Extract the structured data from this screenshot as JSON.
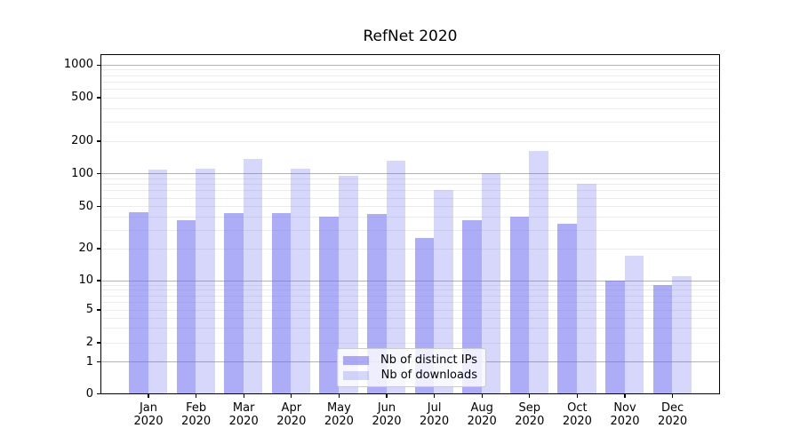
{
  "chart_data": {
    "type": "bar",
    "title": "RefNet 2020",
    "categories": [
      "Jan",
      "Feb",
      "Mar",
      "Apr",
      "May",
      "Jun",
      "Jul",
      "Aug",
      "Sep",
      "Oct",
      "Nov",
      "Dec"
    ],
    "category_year": "2020",
    "series": [
      {
        "name": "Nb of distinct IPs",
        "color": "rgba(107,107,240,0.56)",
        "values": [
          44,
          37,
          43,
          43,
          40,
          42,
          25,
          37,
          40,
          34,
          10,
          9
        ]
      },
      {
        "name": "Nb of downloads",
        "color": "rgba(107,107,240,0.27)",
        "values": [
          108,
          110,
          137,
          110,
          95,
          130,
          70,
          100,
          160,
          80,
          17,
          11
        ]
      }
    ],
    "yaxis": {
      "ticks": [
        0,
        1,
        2,
        5,
        10,
        20,
        50,
        100,
        200,
        500,
        1000
      ],
      "scale": "log-like",
      "range": [
        0,
        1000
      ]
    },
    "xlabel": "",
    "ylabel": "",
    "grid": true,
    "legend_position": "lower center"
  },
  "colors": {
    "major_grid": "#b3b3b3",
    "minor_grid": "#ececec",
    "spine": "#000000",
    "background": "#ffffff"
  }
}
